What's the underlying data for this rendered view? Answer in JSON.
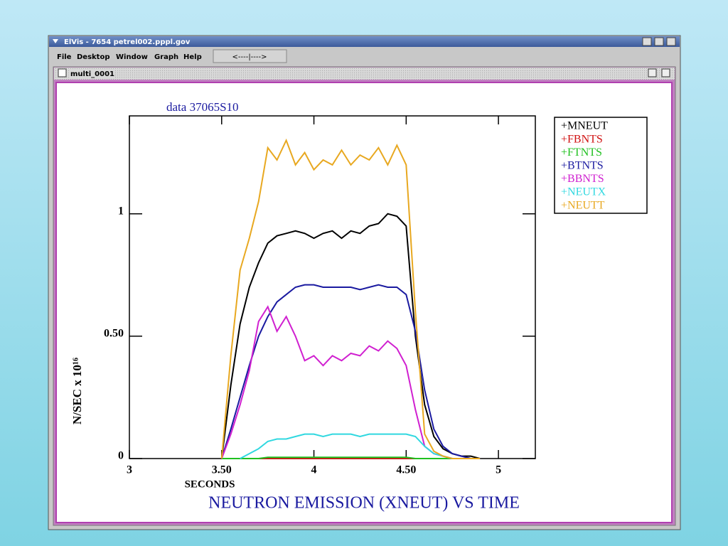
{
  "window": {
    "title": "ElVis - 7654 petrel002.pppl.gov",
    "menu": [
      "File",
      "Desktop",
      "Window",
      "Graph",
      "Help"
    ],
    "slider": "<----|---->"
  },
  "subwindow": {
    "title": "multi_0001"
  },
  "chart_data": {
    "type": "line",
    "subtitle": "data 37065S10",
    "title": "NEUTRON EMISSION (XNEUT) VS TIME",
    "x_label": "SECONDS",
    "y_label": "N/SEC x 10¹⁶",
    "xlim": [
      3,
      5.2
    ],
    "xticks": [
      3,
      {
        "value": 3.5,
        "label": "3.50"
      },
      4,
      {
        "value": 4.5,
        "label": "4.50"
      },
      5
    ],
    "ylim": [
      0,
      1.4
    ],
    "yticks": [
      0,
      {
        "value": 0.5,
        "label": "0.50"
      },
      1
    ],
    "x": [
      3.5,
      3.55,
      3.6,
      3.65,
      3.7,
      3.75,
      3.8,
      3.85,
      3.9,
      3.95,
      4.0,
      4.05,
      4.1,
      4.15,
      4.2,
      4.25,
      4.3,
      4.35,
      4.4,
      4.45,
      4.5,
      4.55,
      4.6,
      4.65,
      4.7,
      4.75,
      4.8,
      4.85,
      4.9
    ],
    "series": [
      {
        "name": "+MNEUT",
        "color": "#000000",
        "values": [
          0,
          0.3,
          0.55,
          0.7,
          0.8,
          0.88,
          0.91,
          0.92,
          0.93,
          0.92,
          0.9,
          0.92,
          0.93,
          0.9,
          0.93,
          0.92,
          0.95,
          0.96,
          1.0,
          0.99,
          0.95,
          0.5,
          0.22,
          0.09,
          0.04,
          0.02,
          0.01,
          0.01,
          0
        ]
      },
      {
        "name": "+FBNTS",
        "color": "#d01010",
        "values": [
          0,
          0,
          0,
          0,
          0,
          0,
          0,
          0,
          0,
          0,
          0,
          0,
          0,
          0,
          0,
          0,
          0,
          0,
          0,
          0,
          0,
          0,
          0,
          0,
          0,
          0,
          0,
          0,
          0
        ]
      },
      {
        "name": "+FTNTS",
        "color": "#20c020",
        "values": [
          0,
          0,
          0,
          0,
          0,
          0.005,
          0.005,
          0.005,
          0.005,
          0.005,
          0.005,
          0.005,
          0.005,
          0.005,
          0.005,
          0.005,
          0.005,
          0.005,
          0.005,
          0.005,
          0.005,
          0,
          0,
          0,
          0,
          0,
          0,
          0,
          0
        ]
      },
      {
        "name": "+BTNTS",
        "color": "#1a1aa0",
        "values": [
          0,
          0.12,
          0.25,
          0.38,
          0.5,
          0.58,
          0.64,
          0.67,
          0.7,
          0.71,
          0.71,
          0.7,
          0.7,
          0.7,
          0.7,
          0.69,
          0.7,
          0.71,
          0.7,
          0.7,
          0.67,
          0.52,
          0.28,
          0.12,
          0.05,
          0.02,
          0.01,
          0,
          0
        ]
      },
      {
        "name": "+BBNTS",
        "color": "#d020d0",
        "values": [
          0,
          0.1,
          0.22,
          0.36,
          0.56,
          0.62,
          0.52,
          0.58,
          0.5,
          0.4,
          0.42,
          0.38,
          0.42,
          0.4,
          0.43,
          0.42,
          0.46,
          0.44,
          0.48,
          0.45,
          0.38,
          0.2,
          0.05,
          0.02,
          0.01,
          0,
          0,
          0,
          0
        ]
      },
      {
        "name": "+NEUTX",
        "color": "#30d8e0",
        "values": [
          null,
          null,
          0,
          0.02,
          0.04,
          0.07,
          0.08,
          0.08,
          0.09,
          0.1,
          0.1,
          0.09,
          0.1,
          0.1,
          0.1,
          0.09,
          0.1,
          0.1,
          0.1,
          0.1,
          0.1,
          0.09,
          0.05,
          0.02,
          0.01,
          0,
          0,
          0,
          0
        ]
      },
      {
        "name": "+NEUTT",
        "color": "#e8a820",
        "values": [
          0,
          0.42,
          0.77,
          0.9,
          1.05,
          1.27,
          1.22,
          1.3,
          1.2,
          1.25,
          1.18,
          1.22,
          1.2,
          1.26,
          1.2,
          1.24,
          1.22,
          1.27,
          1.2,
          1.28,
          1.2,
          0.6,
          0.1,
          0.03,
          0.01,
          0,
          0,
          0,
          0
        ]
      }
    ]
  }
}
